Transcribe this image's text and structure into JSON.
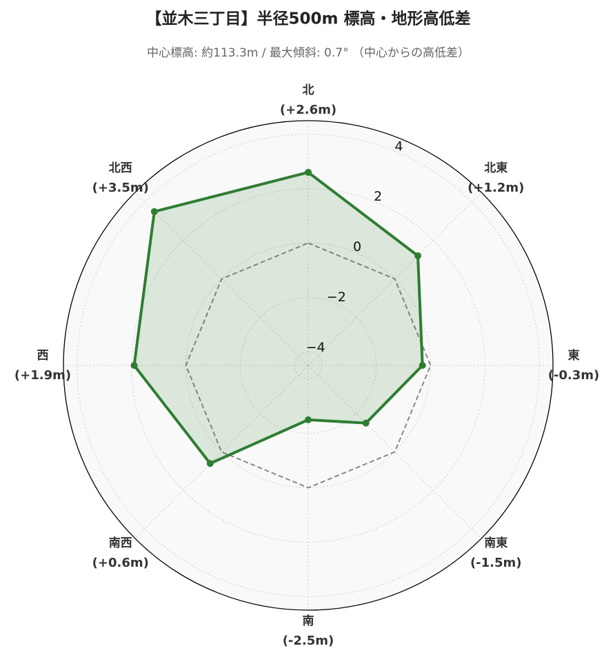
{
  "chart_data": {
    "type": "radar",
    "title": "【並木三丁目】半径500m 標高・地形高低差",
    "subtitle": "中心標高: 約113.3m / 最大傾斜: 0.7° （中心からの高低差）",
    "categories": [
      "北",
      "北東",
      "東",
      "南東",
      "南",
      "南西",
      "西",
      "北西"
    ],
    "series": [
      {
        "color": "#2e7d32",
        "values": [
          2.6,
          1.2,
          -0.3,
          -1.5,
          -2.5,
          0.6,
          1.9,
          3.5
        ],
        "value_labels": [
          "(+2.6m)",
          "(+1.2m)",
          "(-0.3m)",
          "(-1.5m)",
          "(-2.5m)",
          "(+0.6m)",
          "(+1.9m)",
          "(+3.5m)"
        ]
      }
    ],
    "reference_line": 0,
    "ylim": [
      -4.5,
      4.5
    ],
    "yticks": [
      {
        "value": -4,
        "label": "−4"
      },
      {
        "value": -2,
        "label": "−2"
      },
      0,
      2,
      4
    ],
    "grid": true
  }
}
